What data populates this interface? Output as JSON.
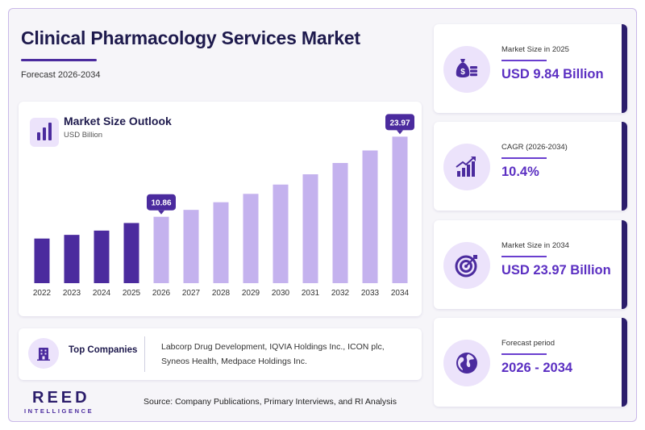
{
  "header": {
    "title": "Clinical Pharmacology Services Market",
    "subtitle": "Forecast 2026-2034"
  },
  "chart_data": {
    "type": "bar",
    "title": "Market Size Outlook",
    "unit": "USD Billion",
    "categories": [
      "2022",
      "2023",
      "2024",
      "2025",
      "2026",
      "2027",
      "2028",
      "2029",
      "2030",
      "2031",
      "2032",
      "2033",
      "2034"
    ],
    "values": [
      7.3,
      7.9,
      8.6,
      9.84,
      10.86,
      11.99,
      13.24,
      14.61,
      16.13,
      17.81,
      19.66,
      21.71,
      23.97
    ],
    "historical_color": "#4b2b9e",
    "forecast_color": "#c4b2ee",
    "callouts": [
      {
        "category": "2026",
        "label": "10.86"
      },
      {
        "category": "2034",
        "label": "23.97"
      }
    ],
    "ylim": [
      0,
      26
    ]
  },
  "companies": {
    "label": "Top Companies",
    "line1": "Labcorp Drug Development, IQVIA Holdings Inc., ICON plc,",
    "line2": "Syneos Health, Medpace Holdings Inc."
  },
  "stats": [
    {
      "label": "Market Size in 2025",
      "value": "USD 9.84 Billion",
      "icon": "money-bag-icon"
    },
    {
      "label": "CAGR (2026-2034)",
      "value": "10.4%",
      "icon": "growth-chart-icon"
    },
    {
      "label": "Market Size in 2034",
      "value": "USD 23.97 Billion",
      "icon": "target-icon"
    },
    {
      "label": "Forecast period",
      "value": "2026 - 2034",
      "icon": "globe-icon"
    }
  ],
  "footer": {
    "logo_main": "REED",
    "logo_sub": "INTELLIGENCE",
    "source": "Source: Company Publications, Primary Interviews, and RI Analysis"
  },
  "colors": {
    "accent": "#4b2b9e",
    "value_text": "#5b2fc2",
    "navy": "#1e1a4d"
  }
}
